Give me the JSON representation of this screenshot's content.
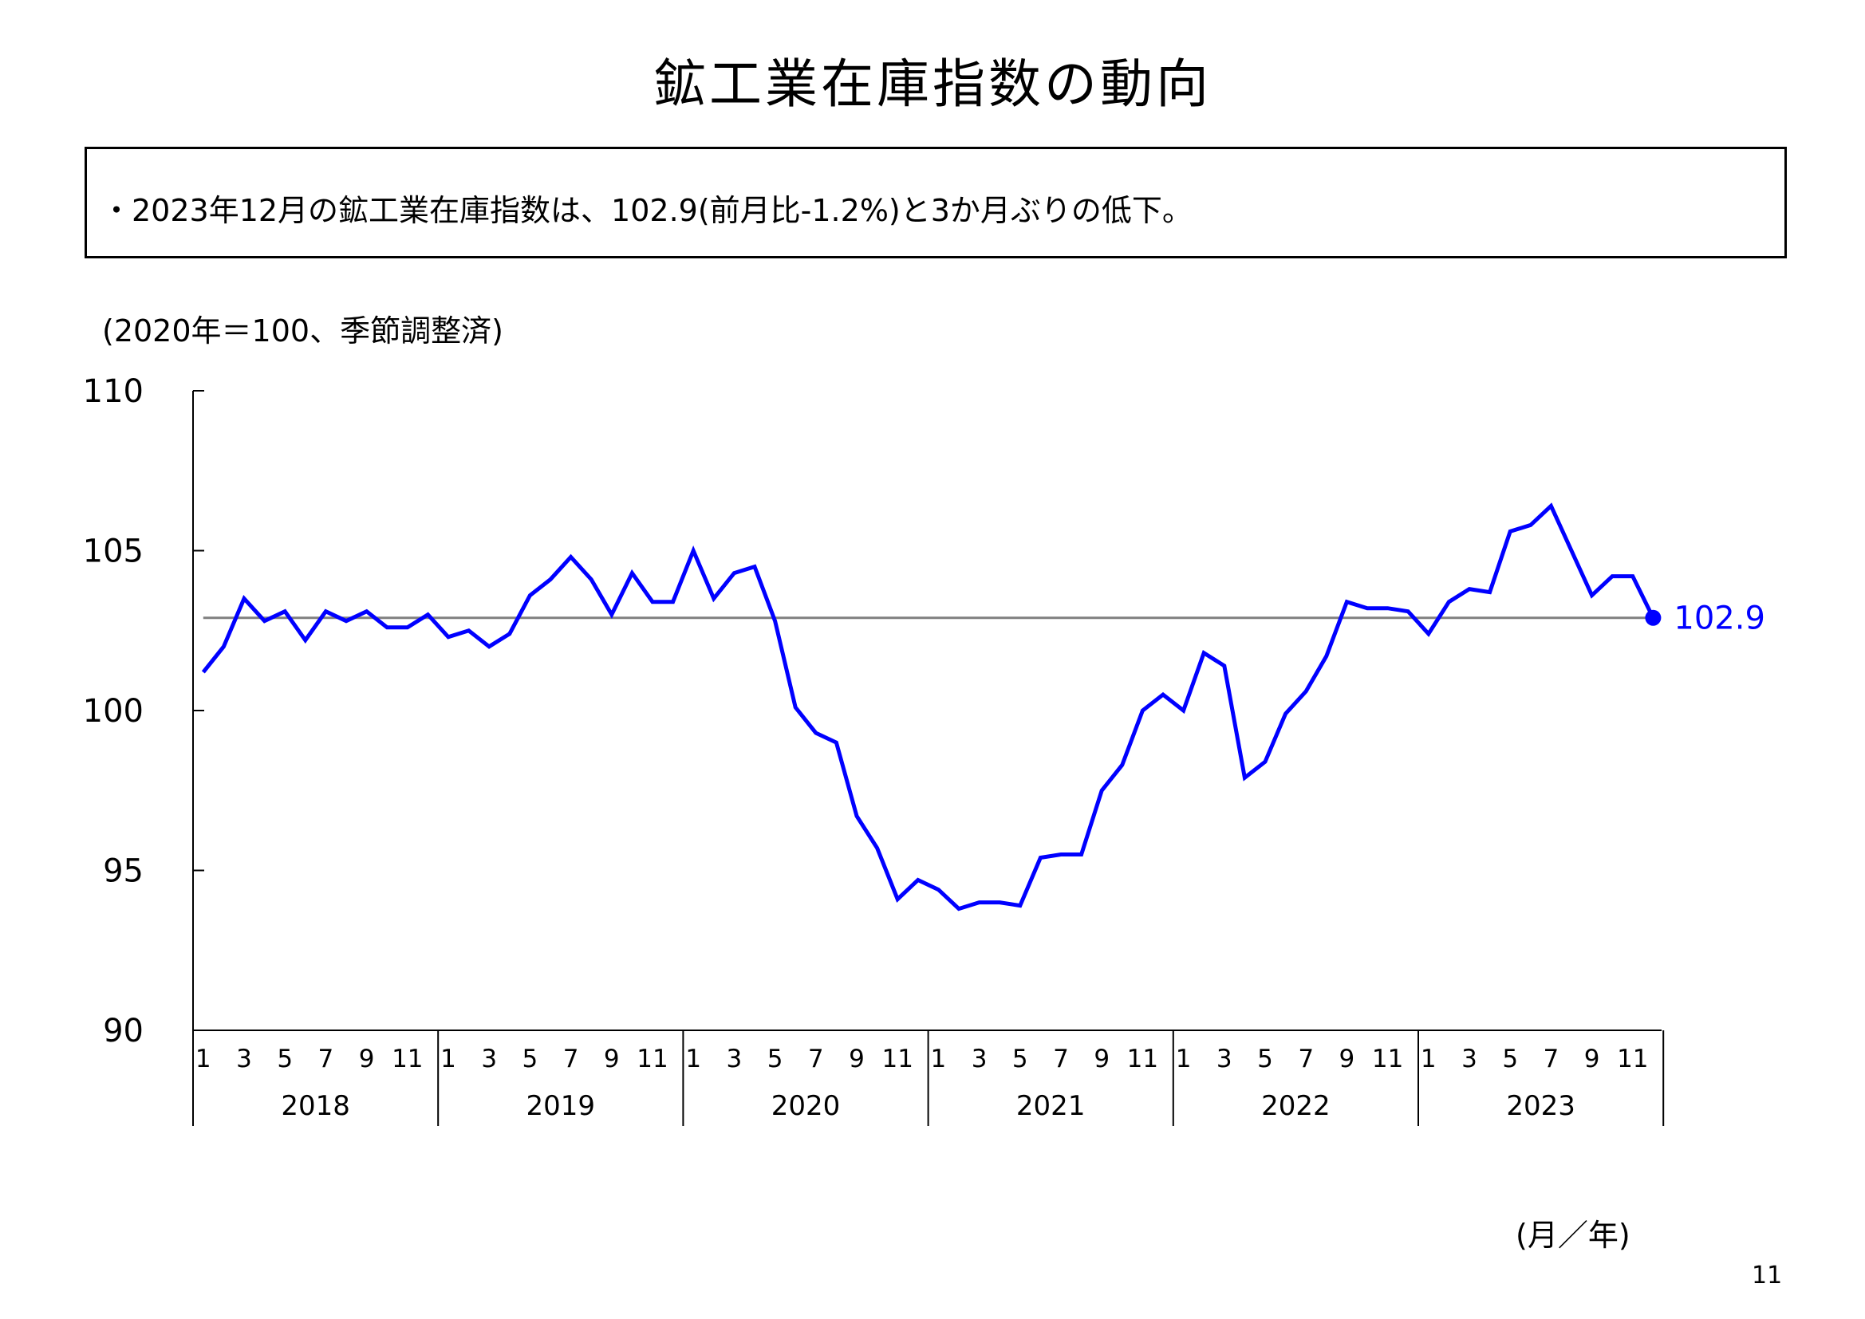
{
  "title": "鉱工業在庫指数の動向",
  "summary": "・2023年12月の鉱工業在庫指数は、102.9(前月比-1.2%)と3か月ぶりの低下。",
  "unit_note": "(2020年＝100、季節調整済)",
  "x_unit": "(月／年)",
  "page_number": "11",
  "chart_data": {
    "type": "line",
    "title": "",
    "xlabel": "(月／年)",
    "ylabel": "(2020年＝100、季節調整済)",
    "ylim": [
      90,
      110
    ],
    "yticks": [
      90,
      95,
      100,
      105,
      110
    ],
    "grid": false,
    "years": [
      "2018",
      "2019",
      "2020",
      "2021",
      "2022",
      "2023"
    ],
    "month_ticks": [
      "1",
      "3",
      "5",
      "7",
      "9",
      "11"
    ],
    "series": [
      {
        "name": "",
        "color": "#0000ff",
        "values": [
          101.2,
          102.0,
          103.5,
          102.8,
          103.1,
          102.2,
          103.1,
          102.8,
          103.1,
          102.6,
          102.6,
          103.0,
          102.3,
          102.5,
          102.0,
          102.4,
          103.6,
          104.1,
          104.8,
          104.1,
          103.0,
          104.3,
          103.4,
          103.4,
          105.0,
          103.5,
          104.3,
          104.5,
          102.8,
          100.1,
          99.3,
          99.0,
          96.7,
          95.7,
          94.1,
          94.7,
          94.4,
          93.8,
          94.0,
          94.0,
          93.9,
          95.4,
          95.5,
          95.5,
          97.5,
          98.3,
          100.0,
          100.5,
          100.0,
          101.8,
          101.4,
          97.9,
          98.4,
          99.9,
          100.6,
          101.7,
          103.4,
          103.2,
          103.2,
          103.1,
          102.4,
          103.4,
          103.8,
          103.7,
          105.6,
          105.8,
          106.4,
          105.0,
          103.6,
          104.2,
          104.2,
          102.9
        ]
      }
    ],
    "reference_line": {
      "value": 102.9,
      "color": "#808080"
    },
    "end_label": "102.9"
  }
}
